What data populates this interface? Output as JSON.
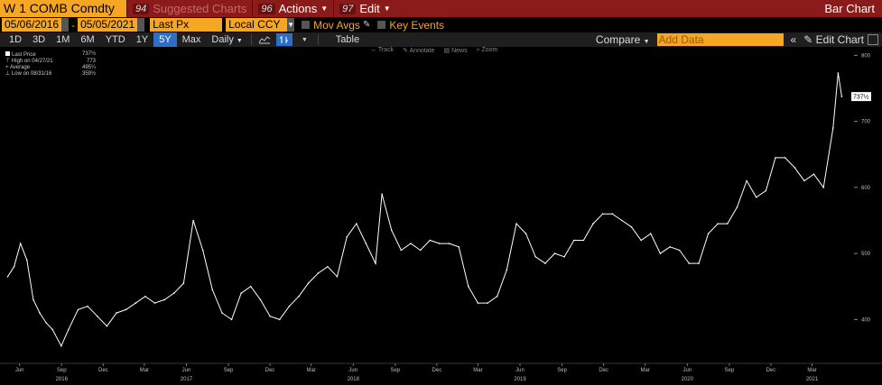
{
  "header": {
    "ticker": "W 1 COMB Comdty",
    "suggested": {
      "num": "94",
      "label": "Suggested Charts"
    },
    "actions": {
      "num": "96",
      "label": "Actions"
    },
    "edit": {
      "num": "97",
      "label": "Edit"
    },
    "title": "Bar Chart"
  },
  "controls": {
    "start_date": "05/06/2016",
    "end_date": "05/05/2021",
    "price_type": "Last Px",
    "currency": "Local CCY",
    "mov_avgs": "Mov Avgs",
    "key_events": "Key Events",
    "periods": [
      "1D",
      "3D",
      "1M",
      "6M",
      "YTD",
      "1Y",
      "5Y",
      "Max"
    ],
    "active_period": "5Y",
    "frequency": "Daily",
    "table": "Table",
    "compare": "Compare",
    "add_data_placeholder": "Add Data",
    "edit_chart": "Edit Chart"
  },
  "tools": [
    "Track",
    "Annotate",
    "News",
    "Zoom"
  ],
  "legend": [
    {
      "label": "Last Price",
      "value": "737½"
    },
    {
      "label": "High on 04/27/21",
      "value": "773"
    },
    {
      "label": "Average",
      "value": "495¼"
    },
    {
      "label": "Low on 08/31/16",
      "value": "359½"
    }
  ],
  "chart_data": {
    "type": "line",
    "series": [
      {
        "name": "Last Price",
        "x": [
          "2016-05-06",
          "2016-05-20",
          "2016-06-03",
          "2016-06-17",
          "2016-07-01",
          "2016-07-15",
          "2016-07-29",
          "2016-08-12",
          "2016-08-31",
          "2016-09-16",
          "2016-10-07",
          "2016-10-28",
          "2016-11-18",
          "2016-12-09",
          "2016-12-30",
          "2017-01-20",
          "2017-02-10",
          "2017-03-03",
          "2017-03-24",
          "2017-04-14",
          "2017-05-05",
          "2017-05-26",
          "2017-06-16",
          "2017-07-07",
          "2017-07-28",
          "2017-08-18",
          "2017-09-08",
          "2017-09-29",
          "2017-10-20",
          "2017-11-10",
          "2017-12-01",
          "2017-12-22",
          "2018-01-12",
          "2018-02-02",
          "2018-02-23",
          "2018-03-16",
          "2018-04-06",
          "2018-04-27",
          "2018-05-18",
          "2018-06-08",
          "2018-06-29",
          "2018-07-20",
          "2018-08-03",
          "2018-08-24",
          "2018-09-14",
          "2018-10-05",
          "2018-10-26",
          "2018-11-16",
          "2018-12-07",
          "2018-12-28",
          "2019-01-18",
          "2019-02-08",
          "2019-03-01",
          "2019-03-22",
          "2019-04-12",
          "2019-05-03",
          "2019-05-24",
          "2019-06-14",
          "2019-07-05",
          "2019-07-26",
          "2019-08-16",
          "2019-09-06",
          "2019-09-27",
          "2019-10-18",
          "2019-11-08",
          "2019-11-29",
          "2019-12-20",
          "2020-01-10",
          "2020-01-31",
          "2020-02-21",
          "2020-03-13",
          "2020-04-03",
          "2020-04-24",
          "2020-05-15",
          "2020-06-05",
          "2020-06-26",
          "2020-07-17",
          "2020-08-07",
          "2020-08-28",
          "2020-09-18",
          "2020-10-09",
          "2020-10-30",
          "2020-11-20",
          "2020-12-11",
          "2021-01-01",
          "2021-01-22",
          "2021-02-12",
          "2021-03-05",
          "2021-03-26",
          "2021-04-16",
          "2021-04-27",
          "2021-05-05"
        ],
        "values": [
          465,
          480,
          515,
          490,
          430,
          410,
          395,
          385,
          360,
          385,
          415,
          420,
          405,
          390,
          410,
          415,
          425,
          435,
          425,
          430,
          440,
          455,
          550,
          505,
          445,
          410,
          400,
          440,
          450,
          430,
          405,
          400,
          420,
          435,
          455,
          470,
          480,
          465,
          525,
          545,
          515,
          485,
          590,
          535,
          505,
          515,
          505,
          520,
          515,
          515,
          510,
          450,
          425,
          425,
          435,
          475,
          545,
          530,
          495,
          485,
          500,
          495,
          520,
          520,
          545,
          560,
          560,
          550,
          540,
          520,
          530,
          500,
          510,
          505,
          485,
          485,
          530,
          545,
          545,
          570,
          610,
          585,
          595,
          645,
          645,
          630,
          610,
          620,
          600,
          690,
          773,
          737.5
        ]
      }
    ],
    "x_ticks": [
      {
        "date": "2016-06-01",
        "label": "Jun"
      },
      {
        "date": "2016-09-01",
        "label": "Sep"
      },
      {
        "date": "2016-12-01",
        "label": "Dec"
      },
      {
        "date": "2017-03-01",
        "label": "Mar"
      },
      {
        "date": "2017-06-01",
        "label": "Jun"
      },
      {
        "date": "2017-09-01",
        "label": "Sep"
      },
      {
        "date": "2017-12-01",
        "label": "Dec"
      },
      {
        "date": "2018-03-01",
        "label": "Mar"
      },
      {
        "date": "2018-06-01",
        "label": "Jun"
      },
      {
        "date": "2018-09-01",
        "label": "Sep"
      },
      {
        "date": "2018-12-01",
        "label": "Dec"
      },
      {
        "date": "2019-03-01",
        "label": "Mar"
      },
      {
        "date": "2019-06-01",
        "label": "Jun"
      },
      {
        "date": "2019-09-01",
        "label": "Sep"
      },
      {
        "date": "2019-12-01",
        "label": "Dec"
      },
      {
        "date": "2020-03-01",
        "label": "Mar"
      },
      {
        "date": "2020-06-01",
        "label": "Jun"
      },
      {
        "date": "2020-09-01",
        "label": "Sep"
      },
      {
        "date": "2020-12-01",
        "label": "Dec"
      },
      {
        "date": "2021-03-01",
        "label": "Mar"
      }
    ],
    "year_labels": [
      {
        "date": "2016-09-01",
        "label": "2016"
      },
      {
        "date": "2017-06-01",
        "label": "2017"
      },
      {
        "date": "2018-06-01",
        "label": "2018"
      },
      {
        "date": "2019-06-01",
        "label": "2019"
      },
      {
        "date": "2020-06-01",
        "label": "2020"
      },
      {
        "date": "2021-03-01",
        "label": "2021"
      }
    ],
    "y_ticks": [
      400,
      500,
      600,
      700,
      800
    ],
    "ylim": [
      335,
      810
    ],
    "xlim": [
      "2016-05-01",
      "2021-05-20"
    ],
    "last_value_label": "737½",
    "grid": false,
    "colors": {
      "line": "#ffffff",
      "background": "#000000",
      "axis_text": "#bbbbbb"
    }
  }
}
